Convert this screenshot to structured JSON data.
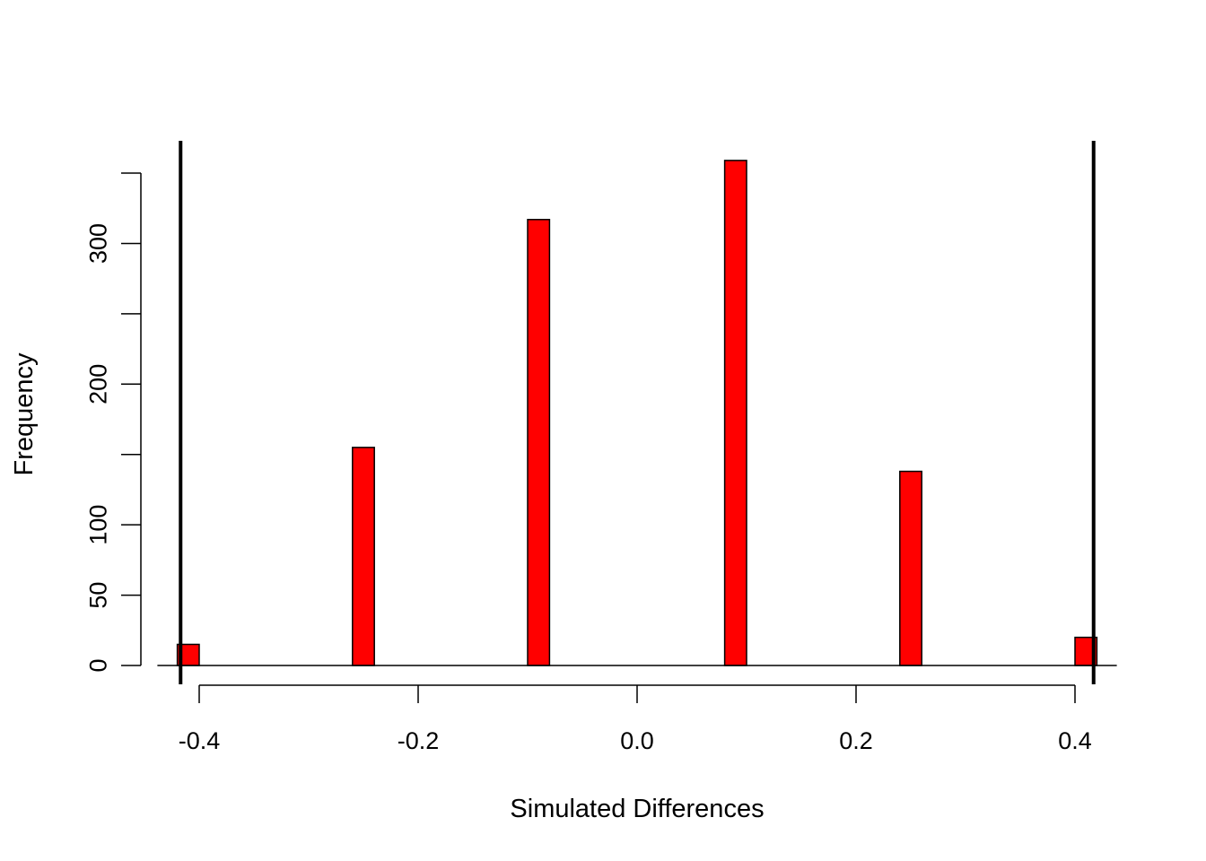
{
  "chart_data": {
    "type": "bar",
    "title": "",
    "xlabel": "Simulated Differences",
    "ylabel": "Frequency",
    "bar_width": 0.02,
    "x": [
      -0.41,
      -0.25,
      -0.09,
      0.09,
      0.25,
      0.41
    ],
    "values": [
      15,
      155,
      317,
      359,
      138,
      20
    ],
    "xlim": [
      -0.43,
      0.43
    ],
    "ylim": [
      0,
      359
    ],
    "xticks": [
      -0.4,
      -0.2,
      0.0,
      0.2,
      0.4
    ],
    "xtick_labels": [
      "-0.4",
      "-0.2",
      "0.0",
      "0.2",
      "0.4"
    ],
    "yticks": [
      0,
      50,
      100,
      150,
      200,
      250,
      300,
      350
    ],
    "ytick_labels": [
      "0",
      "50",
      "100",
      "",
      "200",
      "",
      "300",
      ""
    ],
    "reference_lines": [
      -0.417,
      0.417
    ],
    "grid": false,
    "colors": {
      "bar_fill": "#ff0000",
      "bar_stroke": "#000000",
      "line": "#000000"
    }
  }
}
